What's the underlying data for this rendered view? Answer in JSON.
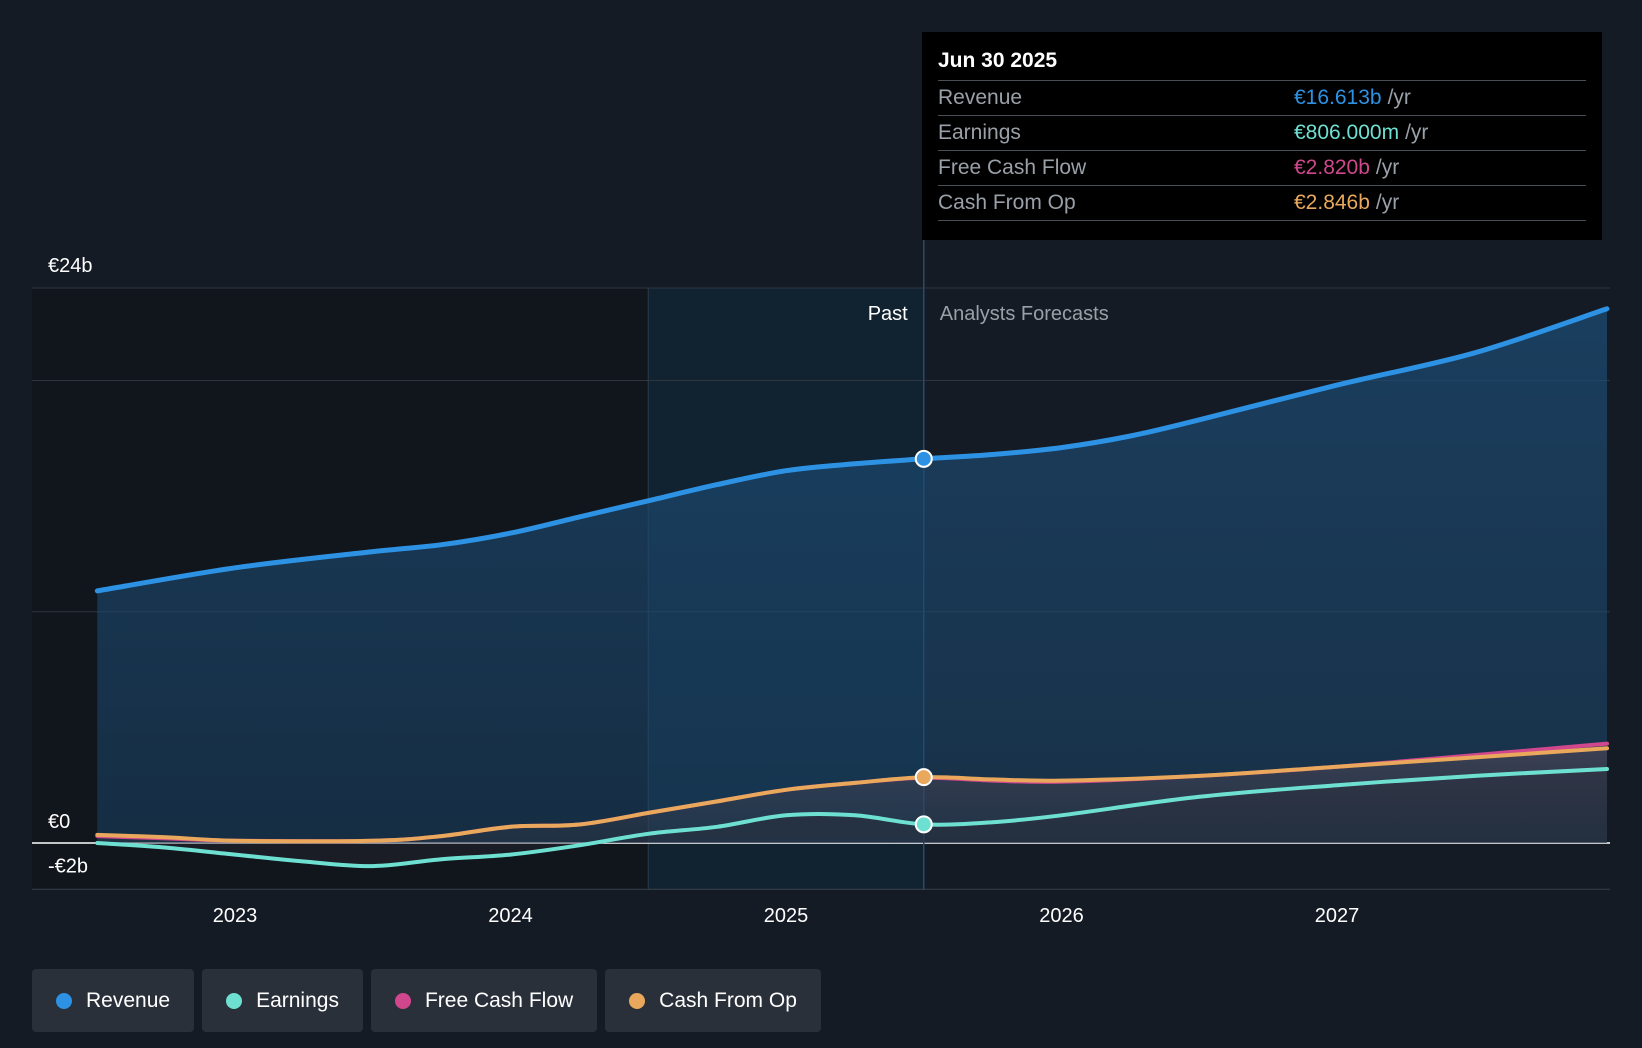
{
  "chart_data": {
    "type": "area",
    "y_axis": {
      "max_label": "€24b",
      "zero_label": "€0",
      "min_label": "-€2b",
      "ylim": [
        -2,
        24
      ]
    },
    "x_axis": {
      "ticks": [
        "2023",
        "2024",
        "2025",
        "2026",
        "2027"
      ],
      "xlim": [
        2022.5,
        2027.98
      ]
    },
    "divider_date": 2025.5,
    "past_shade_start": 2024.5,
    "region_labels": {
      "past": "Past",
      "forecast": "Analysts Forecasts"
    },
    "series": [
      {
        "name": "Revenue",
        "color": "#2d92e3",
        "x": [
          2022.5,
          2023.0,
          2023.5,
          2023.75,
          2024.0,
          2024.25,
          2024.5,
          2024.75,
          2025.0,
          2025.25,
          2025.5,
          2025.75,
          2026.0,
          2026.25,
          2026.5,
          2027.0,
          2027.5,
          2027.98
        ],
        "values": [
          10.9,
          11.9,
          12.6,
          12.9,
          13.4,
          14.1,
          14.8,
          15.5,
          16.1,
          16.4,
          16.613,
          16.8,
          17.1,
          17.6,
          18.3,
          19.8,
          21.2,
          23.1
        ]
      },
      {
        "name": "Earnings",
        "color": "#6ee0d2",
        "x": [
          2022.5,
          2022.75,
          2023.0,
          2023.25,
          2023.5,
          2023.75,
          2024.0,
          2024.25,
          2024.5,
          2024.75,
          2025.0,
          2025.25,
          2025.5,
          2025.75,
          2026.0,
          2026.5,
          2027.0,
          2027.5,
          2027.98
        ],
        "values": [
          0.0,
          -0.2,
          -0.5,
          -0.8,
          -1.0,
          -0.7,
          -0.5,
          -0.1,
          0.4,
          0.7,
          1.2,
          1.2,
          0.806,
          0.9,
          1.2,
          2.0,
          2.5,
          2.9,
          3.2
        ]
      },
      {
        "name": "Free Cash Flow",
        "color": "#d0478d",
        "x": [
          2022.5,
          2022.75,
          2023.0,
          2023.5,
          2023.75,
          2024.0,
          2024.25,
          2024.5,
          2024.75,
          2025.0,
          2025.25,
          2025.5,
          2025.75,
          2026.0,
          2026.5,
          2027.0,
          2027.5,
          2027.98
        ],
        "values": [
          0.3,
          0.2,
          0.1,
          0.1,
          0.3,
          0.7,
          0.8,
          1.3,
          1.8,
          2.3,
          2.6,
          2.82,
          2.7,
          2.65,
          2.9,
          3.3,
          3.8,
          4.3
        ]
      },
      {
        "name": "Cash From Op",
        "color": "#e9a85b",
        "x": [
          2022.5,
          2022.75,
          2023.0,
          2023.5,
          2023.75,
          2024.0,
          2024.25,
          2024.5,
          2024.75,
          2025.0,
          2025.25,
          2025.5,
          2025.75,
          2026.0,
          2026.5,
          2027.0,
          2027.5,
          2027.98
        ],
        "values": [
          0.35,
          0.25,
          0.1,
          0.1,
          0.3,
          0.7,
          0.8,
          1.3,
          1.8,
          2.3,
          2.6,
          2.846,
          2.75,
          2.7,
          2.9,
          3.3,
          3.7,
          4.1
        ]
      }
    ],
    "tooltip": {
      "date": "Jun 30 2025",
      "rows": [
        {
          "name": "Revenue",
          "value": "€16.613b",
          "unit": "/yr",
          "color": "#2d92e3"
        },
        {
          "name": "Earnings",
          "value": "€806.000m",
          "unit": "/yr",
          "color": "#6ee0d2"
        },
        {
          "name": "Free Cash Flow",
          "value": "€2.820b",
          "unit": "/yr",
          "color": "#d0478d"
        },
        {
          "name": "Cash From Op",
          "value": "€2.846b",
          "unit": "/yr",
          "color": "#e9a85b"
        }
      ]
    }
  },
  "legend": [
    {
      "label": "Revenue",
      "color": "#2d92e3"
    },
    {
      "label": "Earnings",
      "color": "#6ee0d2"
    },
    {
      "label": "Free Cash Flow",
      "color": "#d0478d"
    },
    {
      "label": "Cash From Op",
      "color": "#e9a85b"
    }
  ]
}
